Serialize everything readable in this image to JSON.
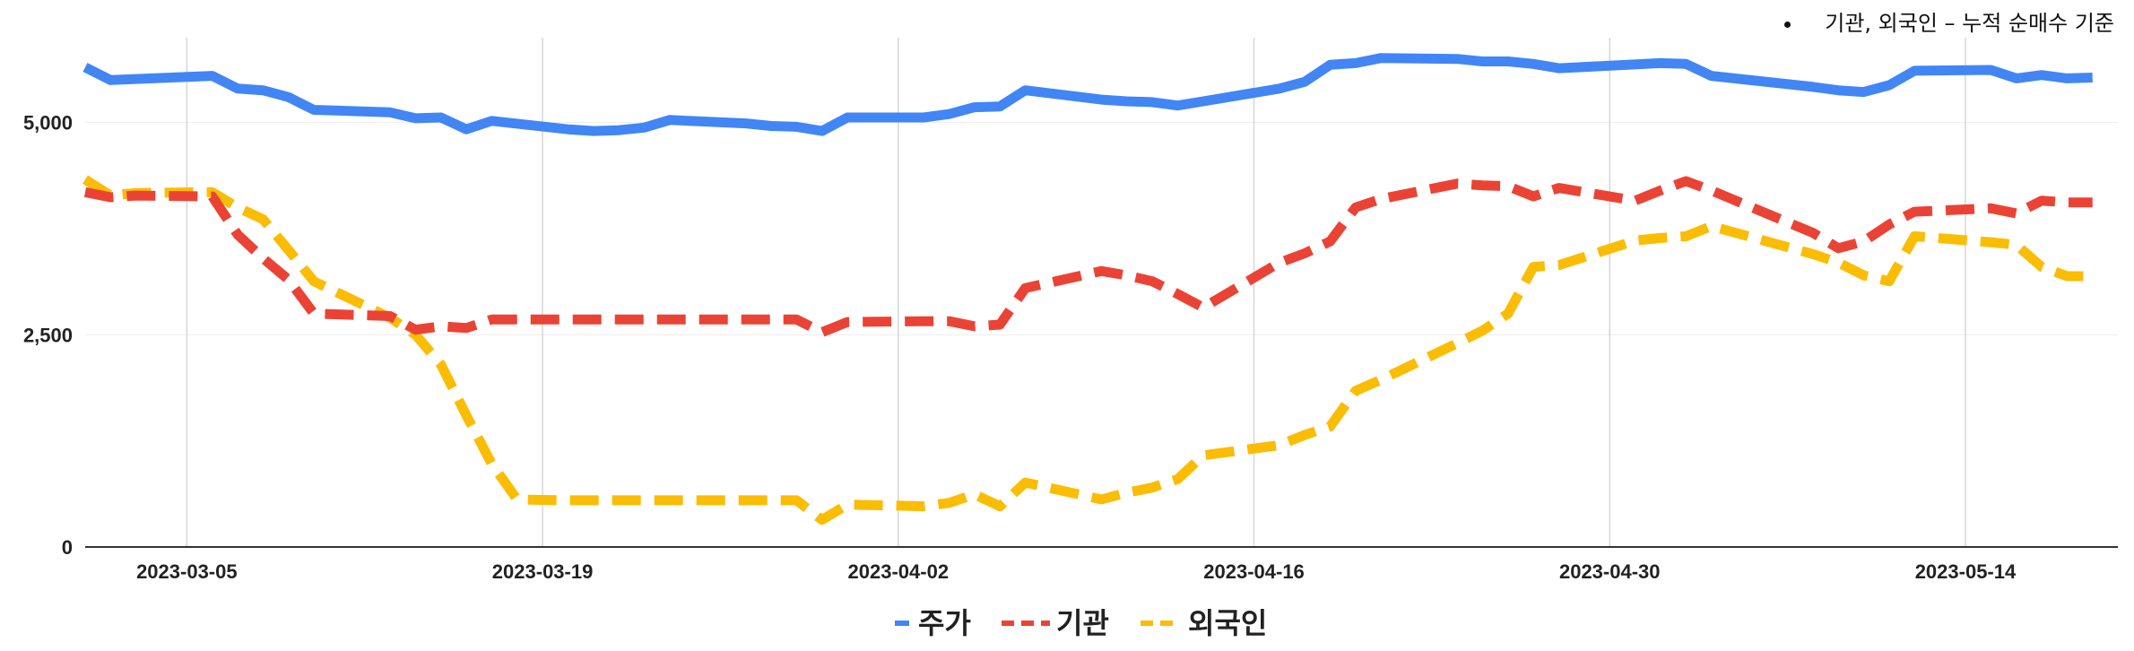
{
  "annotation": "기관, 외국인 – 누적 순매수 기준",
  "chart_data": {
    "type": "line",
    "title": "",
    "xlabel": "",
    "ylabel": "",
    "ylim": [
      0,
      6000
    ],
    "yticks": [
      {
        "value": 0,
        "label": "0"
      },
      {
        "value": 2500,
        "label": "2,500"
      },
      {
        "value": 5000,
        "label": "5,000"
      }
    ],
    "xlim": [
      "2023-03-01",
      "2023-05-20"
    ],
    "xticks": [
      "2023-03-05",
      "2023-03-19",
      "2023-04-02",
      "2023-04-16",
      "2023-04-30",
      "2023-05-14"
    ],
    "grid": true,
    "legend_position": "bottom",
    "series": [
      {
        "name": "주가",
        "color": "#4285F4",
        "dash": "solid",
        "points": [
          [
            "2023-03-01",
            5650
          ],
          [
            "2023-03-02",
            5500
          ],
          [
            "2023-03-06",
            5550
          ],
          [
            "2023-03-07",
            5400
          ],
          [
            "2023-03-08",
            5380
          ],
          [
            "2023-03-09",
            5300
          ],
          [
            "2023-03-10",
            5150
          ],
          [
            "2023-03-13",
            5120
          ],
          [
            "2023-03-14",
            5050
          ],
          [
            "2023-03-15",
            5060
          ],
          [
            "2023-03-16",
            4920
          ],
          [
            "2023-03-17",
            5020
          ],
          [
            "2023-03-20",
            4920
          ],
          [
            "2023-03-21",
            4900
          ],
          [
            "2023-03-22",
            4910
          ],
          [
            "2023-03-23",
            4940
          ],
          [
            "2023-03-24",
            5030
          ],
          [
            "2023-03-27",
            4990
          ],
          [
            "2023-03-28",
            4960
          ],
          [
            "2023-03-29",
            4950
          ],
          [
            "2023-03-30",
            4900
          ],
          [
            "2023-03-31",
            5060
          ],
          [
            "2023-04-03",
            5060
          ],
          [
            "2023-04-04",
            5100
          ],
          [
            "2023-04-05",
            5180
          ],
          [
            "2023-04-06",
            5190
          ],
          [
            "2023-04-07",
            5380
          ],
          [
            "2023-04-10",
            5270
          ],
          [
            "2023-04-11",
            5250
          ],
          [
            "2023-04-12",
            5240
          ],
          [
            "2023-04-13",
            5200
          ],
          [
            "2023-04-14",
            5250
          ],
          [
            "2023-04-17",
            5400
          ],
          [
            "2023-04-18",
            5480
          ],
          [
            "2023-04-19",
            5680
          ],
          [
            "2023-04-20",
            5700
          ],
          [
            "2023-04-21",
            5760
          ],
          [
            "2023-04-24",
            5750
          ],
          [
            "2023-04-25",
            5720
          ],
          [
            "2023-04-26",
            5720
          ],
          [
            "2023-04-27",
            5690
          ],
          [
            "2023-04-28",
            5640
          ],
          [
            "2023-05-02",
            5700
          ],
          [
            "2023-05-03",
            5690
          ],
          [
            "2023-05-04",
            5550
          ],
          [
            "2023-05-08",
            5420
          ],
          [
            "2023-05-09",
            5380
          ],
          [
            "2023-05-10",
            5360
          ],
          [
            "2023-05-11",
            5440
          ],
          [
            "2023-05-12",
            5610
          ],
          [
            "2023-05-15",
            5620
          ],
          [
            "2023-05-16",
            5520
          ],
          [
            "2023-05-17",
            5560
          ],
          [
            "2023-05-18",
            5520
          ],
          [
            "2023-05-19",
            5530
          ]
        ]
      },
      {
        "name": "기관",
        "color": "#EA4335",
        "dash": "dashed",
        "points": [
          [
            "2023-03-01",
            4180
          ],
          [
            "2023-03-02",
            4120
          ],
          [
            "2023-03-03",
            4140
          ],
          [
            "2023-03-06",
            4130
          ],
          [
            "2023-03-07",
            3680
          ],
          [
            "2023-03-08",
            3400
          ],
          [
            "2023-03-09",
            3150
          ],
          [
            "2023-03-10",
            2750
          ],
          [
            "2023-03-13",
            2720
          ],
          [
            "2023-03-14",
            2560
          ],
          [
            "2023-03-15",
            2600
          ],
          [
            "2023-03-16",
            2580
          ],
          [
            "2023-03-17",
            2680
          ],
          [
            "2023-03-20",
            2680
          ],
          [
            "2023-03-21",
            2680
          ],
          [
            "2023-03-22",
            2680
          ],
          [
            "2023-03-23",
            2680
          ],
          [
            "2023-03-24",
            2680
          ],
          [
            "2023-03-27",
            2680
          ],
          [
            "2023-03-28",
            2680
          ],
          [
            "2023-03-29",
            2680
          ],
          [
            "2023-03-30",
            2530
          ],
          [
            "2023-03-31",
            2650
          ],
          [
            "2023-04-03",
            2660
          ],
          [
            "2023-04-04",
            2660
          ],
          [
            "2023-04-05",
            2600
          ],
          [
            "2023-04-06",
            2620
          ],
          [
            "2023-04-07",
            3050
          ],
          [
            "2023-04-10",
            3250
          ],
          [
            "2023-04-11",
            3200
          ],
          [
            "2023-04-12",
            3130
          ],
          [
            "2023-04-13",
            2980
          ],
          [
            "2023-04-14",
            2820
          ],
          [
            "2023-04-17",
            3350
          ],
          [
            "2023-04-18",
            3460
          ],
          [
            "2023-04-19",
            3600
          ],
          [
            "2023-04-20",
            4000
          ],
          [
            "2023-04-21",
            4100
          ],
          [
            "2023-04-24",
            4280
          ],
          [
            "2023-04-25",
            4260
          ],
          [
            "2023-04-26",
            4250
          ],
          [
            "2023-04-27",
            4130
          ],
          [
            "2023-04-28",
            4230
          ],
          [
            "2023-05-01",
            4080
          ],
          [
            "2023-05-02",
            4200
          ],
          [
            "2023-05-03",
            4310
          ],
          [
            "2023-05-04",
            4200
          ],
          [
            "2023-05-08",
            3700
          ],
          [
            "2023-05-09",
            3520
          ],
          [
            "2023-05-10",
            3600
          ],
          [
            "2023-05-11",
            3800
          ],
          [
            "2023-05-12",
            3950
          ],
          [
            "2023-05-15",
            3990
          ],
          [
            "2023-05-16",
            3930
          ],
          [
            "2023-05-17",
            4080
          ],
          [
            "2023-05-18",
            4060
          ],
          [
            "2023-05-19",
            4060
          ]
        ]
      },
      {
        "name": "외국인",
        "color": "#FBBC04",
        "dash": "dashed",
        "points": [
          [
            "2023-03-01",
            4330
          ],
          [
            "2023-03-02",
            4140
          ],
          [
            "2023-03-03",
            4170
          ],
          [
            "2023-03-06",
            4180
          ],
          [
            "2023-03-07",
            4000
          ],
          [
            "2023-03-08",
            3860
          ],
          [
            "2023-03-09",
            3500
          ],
          [
            "2023-03-10",
            3130
          ],
          [
            "2023-03-13",
            2700
          ],
          [
            "2023-03-14",
            2500
          ],
          [
            "2023-03-15",
            2150
          ],
          [
            "2023-03-16",
            1550
          ],
          [
            "2023-03-17",
            980
          ],
          [
            "2023-03-18",
            560
          ],
          [
            "2023-03-20",
            550
          ],
          [
            "2023-03-21",
            550
          ],
          [
            "2023-03-22",
            550
          ],
          [
            "2023-03-23",
            550
          ],
          [
            "2023-03-24",
            550
          ],
          [
            "2023-03-27",
            550
          ],
          [
            "2023-03-28",
            550
          ],
          [
            "2023-03-29",
            550
          ],
          [
            "2023-03-30",
            320
          ],
          [
            "2023-03-31",
            500
          ],
          [
            "2023-04-03",
            480
          ],
          [
            "2023-04-04",
            520
          ],
          [
            "2023-04-05",
            620
          ],
          [
            "2023-04-06",
            480
          ],
          [
            "2023-04-07",
            760
          ],
          [
            "2023-04-10",
            560
          ],
          [
            "2023-04-11",
            640
          ],
          [
            "2023-04-12",
            700
          ],
          [
            "2023-04-13",
            800
          ],
          [
            "2023-04-14",
            1080
          ],
          [
            "2023-04-17",
            1200
          ],
          [
            "2023-04-18",
            1320
          ],
          [
            "2023-04-19",
            1420
          ],
          [
            "2023-04-20",
            1840
          ],
          [
            "2023-04-21",
            1970
          ],
          [
            "2023-04-24",
            2400
          ],
          [
            "2023-04-25",
            2550
          ],
          [
            "2023-04-26",
            2750
          ],
          [
            "2023-04-27",
            3300
          ],
          [
            "2023-04-28",
            3320
          ],
          [
            "2023-05-01",
            3610
          ],
          [
            "2023-05-02",
            3640
          ],
          [
            "2023-05-03",
            3660
          ],
          [
            "2023-05-04",
            3780
          ],
          [
            "2023-05-08",
            3450
          ],
          [
            "2023-05-09",
            3350
          ],
          [
            "2023-05-10",
            3200
          ],
          [
            "2023-05-11",
            3130
          ],
          [
            "2023-05-12",
            3660
          ],
          [
            "2023-05-15",
            3590
          ],
          [
            "2023-05-16",
            3560
          ],
          [
            "2023-05-17",
            3300
          ],
          [
            "2023-05-18",
            3190
          ],
          [
            "2023-05-19",
            3190
          ]
        ]
      }
    ]
  }
}
